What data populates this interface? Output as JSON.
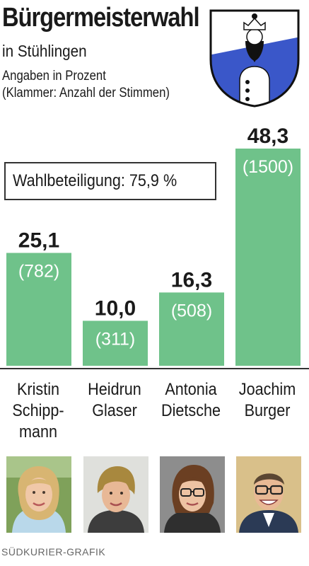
{
  "header": {
    "title": "Bürgermeisterwahl",
    "subtitle": "in Stühlingen",
    "note_line1": "Angaben in Prozent",
    "note_line2": "(Klammer: Anzahl der Stimmen)"
  },
  "turnout": {
    "label": "Wahlbeteiligung: 75,9 %"
  },
  "chart_data": {
    "type": "bar",
    "categories": [
      "Kristin Schipp-mann",
      "Heidrun Glaser",
      "Antonia Dietsche",
      "Joachim Burger"
    ],
    "values": [
      25.1,
      10.0,
      16.3,
      48.3
    ],
    "value_labels": [
      "25,1",
      "10,0",
      "16,3",
      "48,3"
    ],
    "votes": [
      782,
      311,
      508,
      1500
    ],
    "vote_labels": [
      "(782)",
      "(311)",
      "(508)",
      "(1500)"
    ],
    "bar_color": "#6fc28a",
    "ylim": [
      0,
      48.3
    ]
  },
  "candidates": [
    {
      "name": "Kristin\nSchipp-\nmann",
      "photo": "portrait-woman-blonde"
    },
    {
      "name": "Heidrun\nGlaser",
      "photo": "portrait-woman-short-hair"
    },
    {
      "name": "Antonia\nDietsche",
      "photo": "portrait-woman-glasses"
    },
    {
      "name": "Joachim\nBurger",
      "photo": "portrait-man-glasses"
    }
  ],
  "footer": {
    "credit": "SÜDKURIER-GRAFIK"
  },
  "colors": {
    "bar": "#6fc28a",
    "text": "#1a1a1a",
    "crest_blue": "#3a57c9"
  }
}
